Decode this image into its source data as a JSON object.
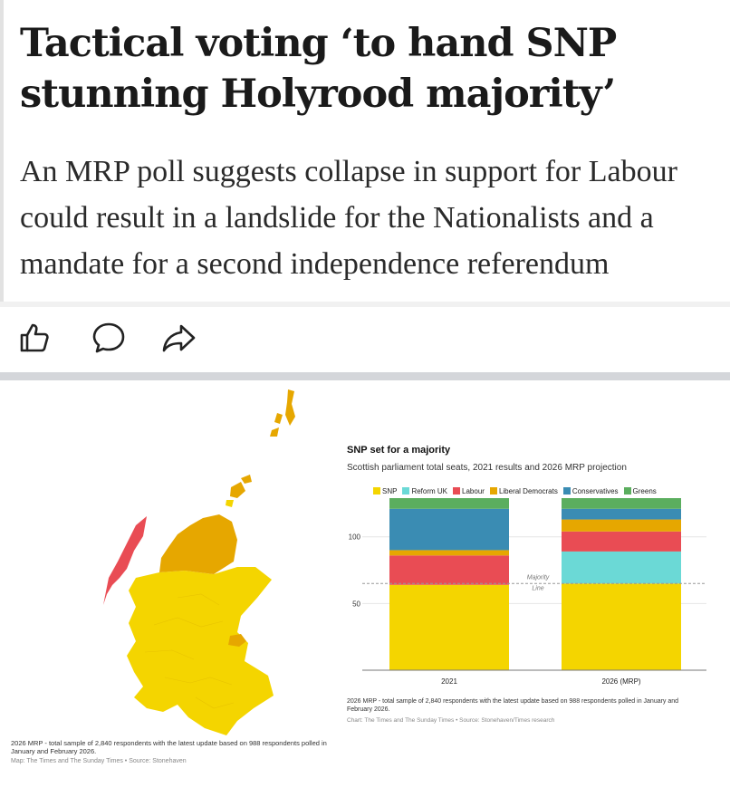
{
  "article": {
    "headline": "Tactical voting ‘to hand SNP stunning Holyrood majority’",
    "standfirst": "An MRP poll suggests collapse in support for Labour could result in a landslide for the Nationalists and a mandate for a second independence referendum"
  },
  "actions": {
    "items": [
      {
        "name": "like",
        "icon": "thumbs-up-icon"
      },
      {
        "name": "comment",
        "icon": "comment-bubble-icon"
      },
      {
        "name": "share",
        "icon": "share-arrow-icon"
      }
    ]
  },
  "colors": {
    "SNP": "#f4d500",
    "Reform UK": "#6bd9d6",
    "Labour": "#e94c54",
    "Liberal Democrats": "#e6a700",
    "Conservatives": "#3a8cb3",
    "Greens": "#5bae5e"
  },
  "map": {
    "note": "2026 MRP - total sample of 2,840 respondents with the latest update based on 988 respondents polled in January and February 2026.",
    "credit": "Map: The Times and The Sunday Times • Source: Stonehaven"
  },
  "chart_data": {
    "type": "bar",
    "stacked": true,
    "title": "SNP set for a majority",
    "subtitle": "Scottish parliament total seats, 2021 results and 2026 MRP projection",
    "categories": [
      "2021",
      "2026 (MRP)"
    ],
    "series": [
      {
        "name": "SNP",
        "values": [
          64,
          65
        ]
      },
      {
        "name": "Reform UK",
        "values": [
          0,
          24
        ]
      },
      {
        "name": "Labour",
        "values": [
          22,
          15
        ]
      },
      {
        "name": "Liberal Democrats",
        "values": [
          4,
          9
        ]
      },
      {
        "name": "Conservatives",
        "values": [
          31,
          8
        ]
      },
      {
        "name": "Greens",
        "values": [
          8,
          8
        ]
      }
    ],
    "y_ticks": [
      50,
      100
    ],
    "ylim": [
      0,
      129
    ],
    "majority_line": {
      "value": 65,
      "label_top": "Majority",
      "label_bottom": "Line"
    },
    "legend_position": "top",
    "grid": true,
    "note": "2026 MRP - total sample of 2,840 respondents with the latest update based on 988 respondents polled in January and February 2026.",
    "credit": "Chart: The Times and The Sunday Times • Source: Stonehaven/Times research"
  }
}
